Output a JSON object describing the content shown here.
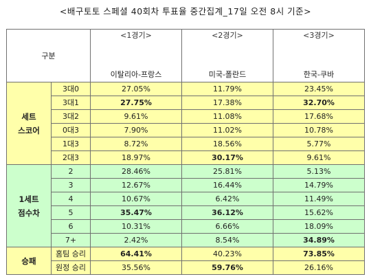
{
  "title": "<배구토토 스페셜 40회차 투표율 중간집계_17일 오전 8시 기준>",
  "header": {
    "corner": "구분",
    "matches": [
      {
        "num": "<1경기>",
        "teams": "이탈리아-프랑스"
      },
      {
        "num": "<2경기>",
        "teams": "미국-폴란드"
      },
      {
        "num": "<3경기>",
        "teams": "한국-쿠바"
      }
    ]
  },
  "groups": {
    "set_score": {
      "line1": "세트",
      "line2": "스코어"
    },
    "set_diff": {
      "line1": "1세트",
      "line2": "점수차"
    },
    "win_loss": {
      "line1": "승패"
    }
  },
  "set_score_rows": [
    {
      "label": "3대0",
      "v": [
        "27.05%",
        "11.79%",
        "23.45%"
      ],
      "b": [
        false,
        false,
        false
      ]
    },
    {
      "label": "3대1",
      "v": [
        "27.75%",
        "17.38%",
        "32.70%"
      ],
      "b": [
        true,
        false,
        true
      ]
    },
    {
      "label": "3대2",
      "v": [
        "9.61%",
        "11.08%",
        "17.68%"
      ],
      "b": [
        false,
        false,
        false
      ]
    },
    {
      "label": "0대3",
      "v": [
        "7.90%",
        "11.02%",
        "10.78%"
      ],
      "b": [
        false,
        false,
        false
      ]
    },
    {
      "label": "1대3",
      "v": [
        "8.72%",
        "18.56%",
        "5.77%"
      ],
      "b": [
        false,
        false,
        false
      ]
    },
    {
      "label": "2대3",
      "v": [
        "18.97%",
        "30.17%",
        "9.61%"
      ],
      "b": [
        false,
        true,
        false
      ]
    }
  ],
  "set_diff_rows": [
    {
      "label": "2",
      "v": [
        "28.46%",
        "25.81%",
        "5.13%"
      ],
      "b": [
        false,
        false,
        false
      ]
    },
    {
      "label": "3",
      "v": [
        "12.67%",
        "16.44%",
        "14.79%"
      ],
      "b": [
        false,
        false,
        false
      ]
    },
    {
      "label": "4",
      "v": [
        "10.67%",
        "6.42%",
        "11.49%"
      ],
      "b": [
        false,
        false,
        false
      ]
    },
    {
      "label": "5",
      "v": [
        "35.47%",
        "36.12%",
        "15.62%"
      ],
      "b": [
        true,
        true,
        false
      ]
    },
    {
      "label": "6",
      "v": [
        "10.31%",
        "6.66%",
        "18.09%"
      ],
      "b": [
        false,
        false,
        false
      ]
    },
    {
      "label": "7+",
      "v": [
        "2.42%",
        "8.54%",
        "34.89%"
      ],
      "b": [
        false,
        false,
        true
      ]
    }
  ],
  "win_loss_rows": [
    {
      "label": "홈팀 승리",
      "v": [
        "64.41%",
        "40.23%",
        "73.85%"
      ],
      "b": [
        true,
        false,
        true
      ]
    },
    {
      "label": "원정 승리",
      "v": [
        "35.56%",
        "59.76%",
        "26.16%"
      ],
      "b": [
        false,
        true,
        false
      ]
    }
  ]
}
